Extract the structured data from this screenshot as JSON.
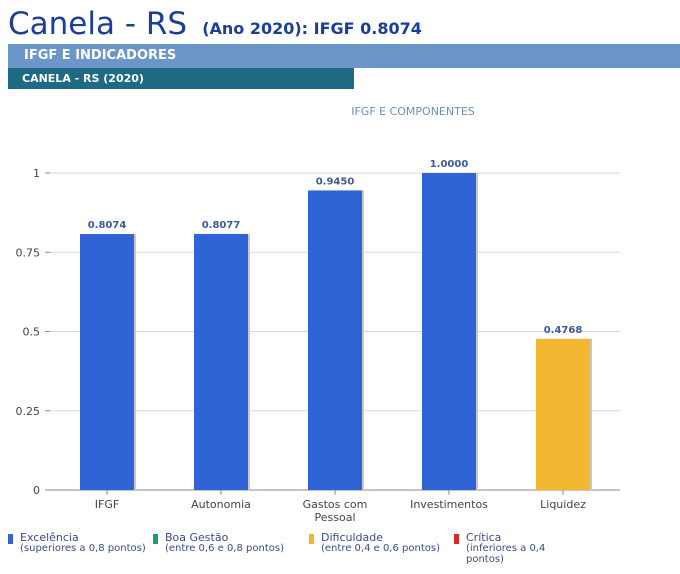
{
  "header": {
    "title": "Canela - RS",
    "subtitle": "(Ano 2020): IFGF  0.8074",
    "section": "IFGF E INDICADORES",
    "subsection": "CANELA - RS (2020)"
  },
  "chart_data": {
    "type": "bar",
    "title": "IFGF E COMPONENTES",
    "xlabel": "",
    "ylabel": "",
    "categories": [
      "IFGF",
      "Autonomia",
      "Gastos com Pessoal",
      "Investimentos",
      "Liquidez"
    ],
    "values": [
      0.8074,
      0.8077,
      0.945,
      1.0,
      0.4768
    ],
    "value_labels": [
      "0.8074",
      "0.8077",
      "0.9450",
      "1.0000",
      "0.4768"
    ],
    "bar_colors": [
      "#2f63d6",
      "#2f63d6",
      "#2f63d6",
      "#2f63d6",
      "#f4b731"
    ],
    "ylim": [
      0,
      1
    ],
    "yticks": [
      0,
      0.25,
      0.5,
      0.75,
      1
    ],
    "ytick_labels": [
      "0",
      "0.25",
      "0.5",
      "0.75",
      "1"
    ],
    "grid": true,
    "legend": "bottom"
  },
  "legend": [
    {
      "label": "Excelência",
      "detail": "(superiores a 0,8 pontos)",
      "color": "#2f63d6"
    },
    {
      "label": "Boa Gestão",
      "detail": "(entre 0,6 e 0,8 pontos)",
      "color": "#1f9c6a"
    },
    {
      "label": "Dificuldade",
      "detail": "(entre 0,4 e 0,6 pontos)",
      "color": "#f4b731"
    },
    {
      "label": "Crítica",
      "detail": "(inferiores a 0,4 pontos)",
      "color": "#d8282a"
    }
  ]
}
